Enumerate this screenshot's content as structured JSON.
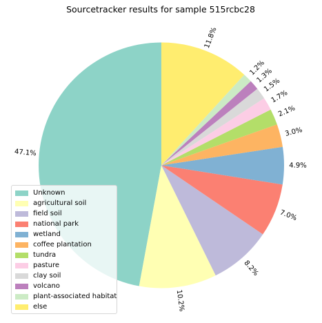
{
  "chart_data": {
    "type": "pie",
    "title": "Sourcetracker results for sample 515rcbc28",
    "start_angle_deg": 90,
    "direction": "clockwise-from-last",
    "legend_placement": "lower-left",
    "slices": [
      {
        "label": "Unknown",
        "value": 47.1,
        "pct_label": "47.1%",
        "color": "#8dd3c7"
      },
      {
        "label": "agricultural soil",
        "value": 10.2,
        "pct_label": "10.2%",
        "color": "#ffffb3"
      },
      {
        "label": "field soil",
        "value": 8.2,
        "pct_label": "8.2%",
        "color": "#bebada"
      },
      {
        "label": "national park",
        "value": 7.0,
        "pct_label": "7.0%",
        "color": "#fb8072"
      },
      {
        "label": "wetland",
        "value": 4.9,
        "pct_label": "4.9%",
        "color": "#80b1d3"
      },
      {
        "label": "coffee plantation",
        "value": 3.0,
        "pct_label": "3.0%",
        "color": "#fdb462"
      },
      {
        "label": "tundra",
        "value": 2.1,
        "pct_label": "2.1%",
        "color": "#b3de69"
      },
      {
        "label": "pasture",
        "value": 1.7,
        "pct_label": "1.7%",
        "color": "#fccde5"
      },
      {
        "label": "clay soil",
        "value": 1.5,
        "pct_label": "1.5%",
        "color": "#d9d9d9"
      },
      {
        "label": "volcano",
        "value": 1.3,
        "pct_label": "1.3%",
        "color": "#bc80bd"
      },
      {
        "label": "plant-associated habitat",
        "value": 1.2,
        "pct_label": "1.2%",
        "color": "#ccebc5"
      },
      {
        "label": "else",
        "value": 11.8,
        "pct_label": "11.8%",
        "color": "#ffed6f"
      }
    ]
  }
}
